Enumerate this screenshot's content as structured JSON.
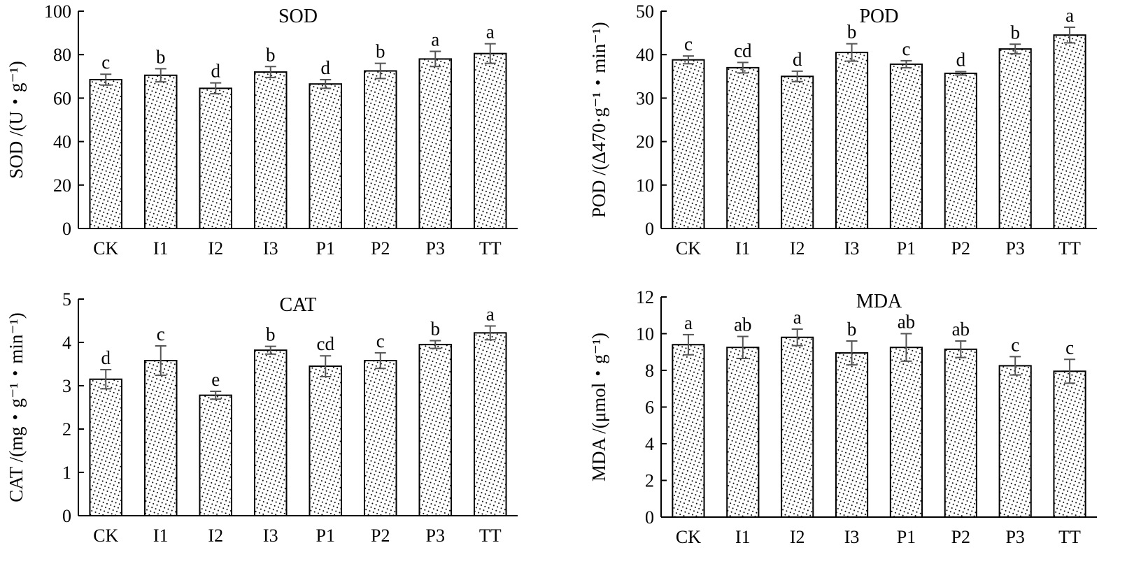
{
  "chart_data": [
    {
      "type": "bar",
      "title": "SOD",
      "ylabel": "SOD /(U・g⁻¹)",
      "categories": [
        "CK",
        "I1",
        "I2",
        "I3",
        "P1",
        "P2",
        "P3",
        "TT"
      ],
      "values": [
        68.5,
        70.5,
        64.5,
        72,
        66.5,
        72.5,
        78,
        80.5
      ],
      "errors": [
        2.5,
        3,
        2.5,
        2.5,
        2,
        3.5,
        3.5,
        4.5
      ],
      "letters": [
        "c",
        "b",
        "d",
        "b",
        "d",
        "b",
        "a",
        "a"
      ],
      "ylim": [
        0,
        100
      ],
      "yticks": [
        0,
        20,
        40,
        60,
        80,
        100
      ]
    },
    {
      "type": "bar",
      "title": "POD",
      "ylabel": "POD /(Δ470·g⁻¹・min⁻¹)",
      "categories": [
        "CK",
        "I1",
        "I2",
        "I3",
        "P1",
        "P2",
        "P3",
        "TT"
      ],
      "values": [
        38.8,
        37,
        35,
        40.5,
        37.8,
        35.7,
        41.3,
        44.5
      ],
      "errors": [
        0.9,
        1.2,
        1.2,
        2.0,
        0.8,
        0.4,
        1.1,
        1.8
      ],
      "letters": [
        "c",
        "cd",
        "d",
        "b",
        "c",
        "d",
        "b",
        "a"
      ],
      "ylim": [
        0,
        50
      ],
      "yticks": [
        0,
        10,
        20,
        30,
        40,
        50
      ]
    },
    {
      "type": "bar",
      "title": "CAT",
      "ylabel": "CAT /(mg・g⁻¹・min⁻¹)",
      "categories": [
        "CK",
        "I1",
        "I2",
        "I3",
        "P1",
        "P2",
        "P3",
        "TT"
      ],
      "values": [
        3.15,
        3.58,
        2.78,
        3.82,
        3.45,
        3.58,
        3.95,
        4.22
      ],
      "errors": [
        0.22,
        0.34,
        0.09,
        0.09,
        0.24,
        0.18,
        0.09,
        0.16
      ],
      "letters": [
        "d",
        "c",
        "e",
        "b",
        "cd",
        "c",
        "b",
        "a"
      ],
      "ylim": [
        0,
        5
      ],
      "yticks": [
        0,
        1,
        2,
        3,
        4,
        5
      ]
    },
    {
      "type": "bar",
      "title": "MDA",
      "ylabel": "MDA /(μmol・g⁻¹)",
      "categories": [
        "CK",
        "I1",
        "I2",
        "I3",
        "P1",
        "P2",
        "P3",
        "TT"
      ],
      "values": [
        9.4,
        9.25,
        9.8,
        8.95,
        9.25,
        9.15,
        8.25,
        7.95
      ],
      "errors": [
        0.55,
        0.6,
        0.45,
        0.65,
        0.75,
        0.45,
        0.5,
        0.65
      ],
      "letters": [
        "a",
        "ab",
        "a",
        "b",
        "ab",
        "ab",
        "c",
        "c"
      ],
      "ylim": [
        0,
        12
      ],
      "yticks": [
        0,
        2,
        4,
        6,
        8,
        10,
        12
      ]
    }
  ]
}
